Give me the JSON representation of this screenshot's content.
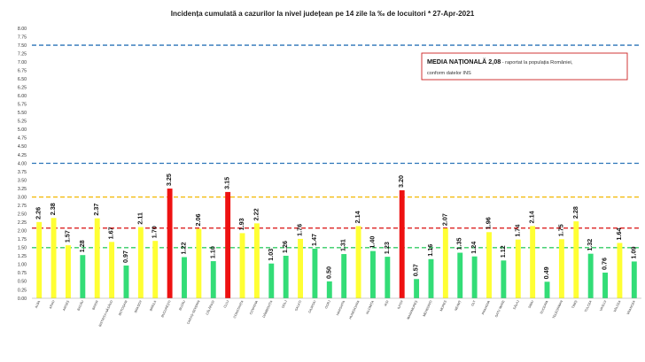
{
  "chart_data": {
    "type": "bar",
    "title": "Incidența cumulată a cazurilor la nivel județean pe 14 zile la ‰ de locuitori *   27-Apr-2021",
    "xlabel": "",
    "ylabel": "",
    "ylim": [
      0,
      8
    ],
    "yticks": [
      "0.00",
      "0.25",
      "0.50",
      "0.75",
      "1.00",
      "1.25",
      "1.50",
      "1.75",
      "2.00",
      "2.25",
      "2.50",
      "2.75",
      "3.00",
      "3.25",
      "3.50",
      "3.75",
      "4.00",
      "4.25",
      "4.50",
      "4.75",
      "5.00",
      "5.25",
      "5.50",
      "5.75",
      "6.00",
      "6.25",
      "6.50",
      "6.75",
      "7.00",
      "7.25",
      "7.50",
      "7.75",
      "8.00"
    ],
    "grid": false,
    "categories": [
      "ALBA",
      "ARAD",
      "ARGEȘ",
      "BACĂU",
      "BIHOR",
      "BISTRIȚA-NĂSĂUD",
      "BOTOȘANI",
      "BRAȘOV",
      "BRĂILA",
      "BUCUREȘTI",
      "BUZĂU",
      "CARAȘ-SEVERIN",
      "CĂLĂRAȘI",
      "CLUJ",
      "CONSTANȚA",
      "COVASNA",
      "DÂMBOVIȚA",
      "DOLJ",
      "GALAȚI",
      "GIURGIU",
      "GORJ",
      "HARGHITA",
      "HUNEDOARA",
      "IALOMIȚA",
      "IAȘI",
      "ILFOV",
      "MARAMUREȘ",
      "MEHEDINȚI",
      "MUREȘ",
      "NEAMȚ",
      "OLT",
      "PRAHOVA",
      "SATU MARE",
      "SĂLAJ",
      "SIBIU",
      "SUCEAVA",
      "TELEORMAN",
      "TIMIȘ",
      "TULCEA",
      "VASLUI",
      "VÂLCEA",
      "VRANCEA"
    ],
    "values": [
      2.26,
      2.38,
      1.57,
      1.28,
      2.37,
      1.67,
      0.97,
      2.11,
      1.7,
      3.25,
      1.22,
      2.06,
      1.1,
      3.15,
      1.93,
      2.22,
      1.03,
      1.26,
      1.76,
      1.47,
      0.5,
      1.31,
      2.14,
      1.4,
      1.23,
      3.2,
      0.57,
      1.16,
      2.07,
      1.35,
      1.24,
      1.96,
      1.12,
      1.74,
      2.14,
      0.49,
      1.75,
      2.28,
      1.32,
      0.76,
      1.64,
      1.09
    ],
    "value_labels": [
      "2.26",
      "2.38",
      "1.57",
      "1.28",
      "2.37",
      "1.67",
      "0.97",
      "2.11",
      "1.70",
      "3.25",
      "1.22",
      "2.06",
      "1.10",
      "3.15",
      "1.93",
      "2.22",
      "1.03",
      "1.26",
      "1.76",
      "1.47",
      "0.50",
      "1.31",
      "2.14",
      "1.40",
      "1.23",
      "3.20",
      "0.57",
      "1.16",
      "2.07",
      "1.35",
      "1.24",
      "1.96",
      "1.12",
      "1.74",
      "2.14",
      "0.49",
      "1.75",
      "2.28",
      "1.32",
      "0.76",
      "1.64",
      "1.09"
    ],
    "colors": {
      "green": "#33dd77",
      "yellow": "#ffff33",
      "red": "#ee1111",
      "line_blue": "#2b74b8",
      "line_orange": "#f2b800",
      "line_red": "#dd2222",
      "line_green": "#33cc66",
      "note_border": "#cc2222"
    },
    "thresholds": [
      {
        "value": 7.5,
        "color": "line_blue"
      },
      {
        "value": 4.0,
        "color": "line_blue"
      },
      {
        "value": 3.0,
        "color": "line_orange"
      },
      {
        "value": 2.08,
        "color": "line_red"
      },
      {
        "value": 1.5,
        "color": "line_green"
      }
    ],
    "color_rule": {
      "green_below": 1.5,
      "red_from": 3.0
    },
    "annotation": {
      "strong": "MEDIA NAȚIONALĂ  2,08",
      "rest": " - raportat la populația României,",
      "line2": "conform datelor INS"
    }
  }
}
